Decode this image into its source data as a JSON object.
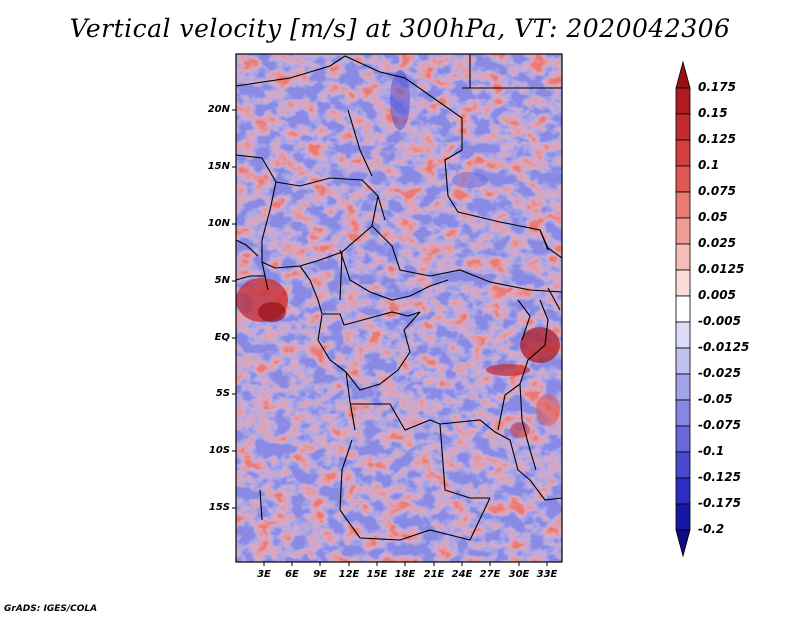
{
  "title": "Vertical velocity [m/s] at 300hPa, VT: 2020042306",
  "credit": "GrADS: IGES/COLA",
  "map": {
    "lat_ticks": [
      "20N",
      "15N",
      "10N",
      "5N",
      "EQ",
      "5S",
      "10S",
      "15S"
    ],
    "lon_ticks": [
      "3E",
      "6E",
      "9E",
      "12E",
      "15E",
      "18E",
      "21E",
      "24E",
      "27E",
      "30E",
      "33E"
    ],
    "lat_range": [
      -20,
      24.5
    ],
    "lon_range": [
      0,
      34.5
    ]
  },
  "colorbar": {
    "labels": [
      "0.175",
      "0.15",
      "0.125",
      "0.1",
      "0.075",
      "0.05",
      "0.025",
      "0.0125",
      "0.005",
      "-0.005",
      "-0.0125",
      "-0.025",
      "-0.05",
      "-0.075",
      "-0.1",
      "-0.125",
      "-0.175",
      "-0.2"
    ],
    "colors": [
      "#9b1016",
      "#b01c22",
      "#c42b30",
      "#d33e3e",
      "#e05a55",
      "#ea7a72",
      "#f19c95",
      "#f6bdb8",
      "#fadcd8",
      "#ffffff",
      "#dcdcf6",
      "#c1c1f0",
      "#a3a3ea",
      "#8686e3",
      "#6868db",
      "#4a4ad0",
      "#2d2dc2",
      "#1717a6",
      "#0d0d8a"
    ]
  }
}
